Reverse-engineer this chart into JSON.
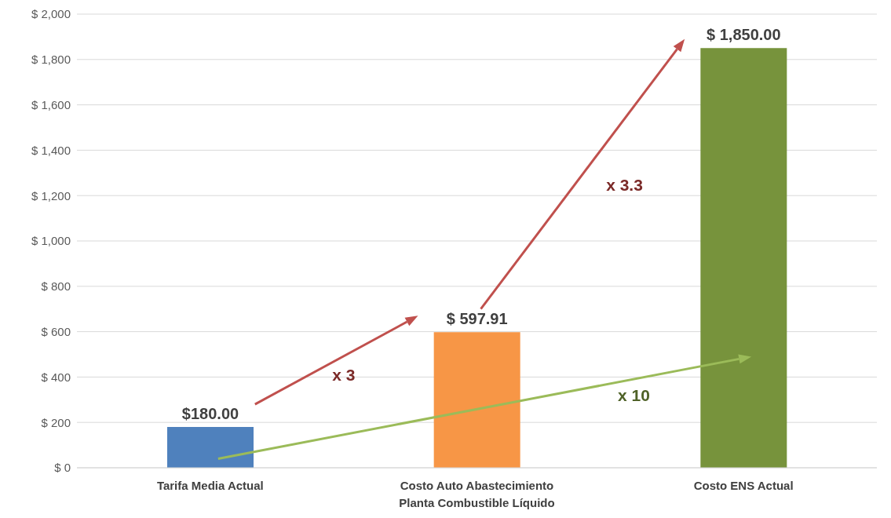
{
  "chart_data": {
    "type": "bar",
    "categories": [
      "Tarifa Media Actual",
      "Costo Auto Abastecimiento Planta Combustible Líquido",
      "Costo ENS Actual"
    ],
    "values": [
      180,
      597.91,
      1850
    ],
    "colors": [
      "#4f81bd",
      "#f79646",
      "#77933c"
    ],
    "value_labels": [
      "$180.00",
      "$ 597.91",
      "$ 1,850.00"
    ],
    "ylim": [
      0,
      2000
    ],
    "yticks": [
      {
        "value": 0,
        "label": "$ 0"
      },
      {
        "value": 200,
        "label": "$ 200"
      },
      {
        "value": 400,
        "label": "$ 400"
      },
      {
        "value": 600,
        "label": "$ 600"
      },
      {
        "value": 800,
        "label": "$ 800"
      },
      {
        "value": 1000,
        "label": "$ 1,000"
      },
      {
        "value": 1200,
        "label": "$ 1,200"
      },
      {
        "value": 1400,
        "label": "$ 1,400"
      },
      {
        "value": 1600,
        "label": "$ 1,600"
      },
      {
        "value": 1800,
        "label": "$ 1,800"
      },
      {
        "value": 2000,
        "label": "$ 2,000"
      }
    ],
    "grid": "y",
    "annotations": [
      "x 3",
      "x 3.3",
      "x 10"
    ]
  }
}
